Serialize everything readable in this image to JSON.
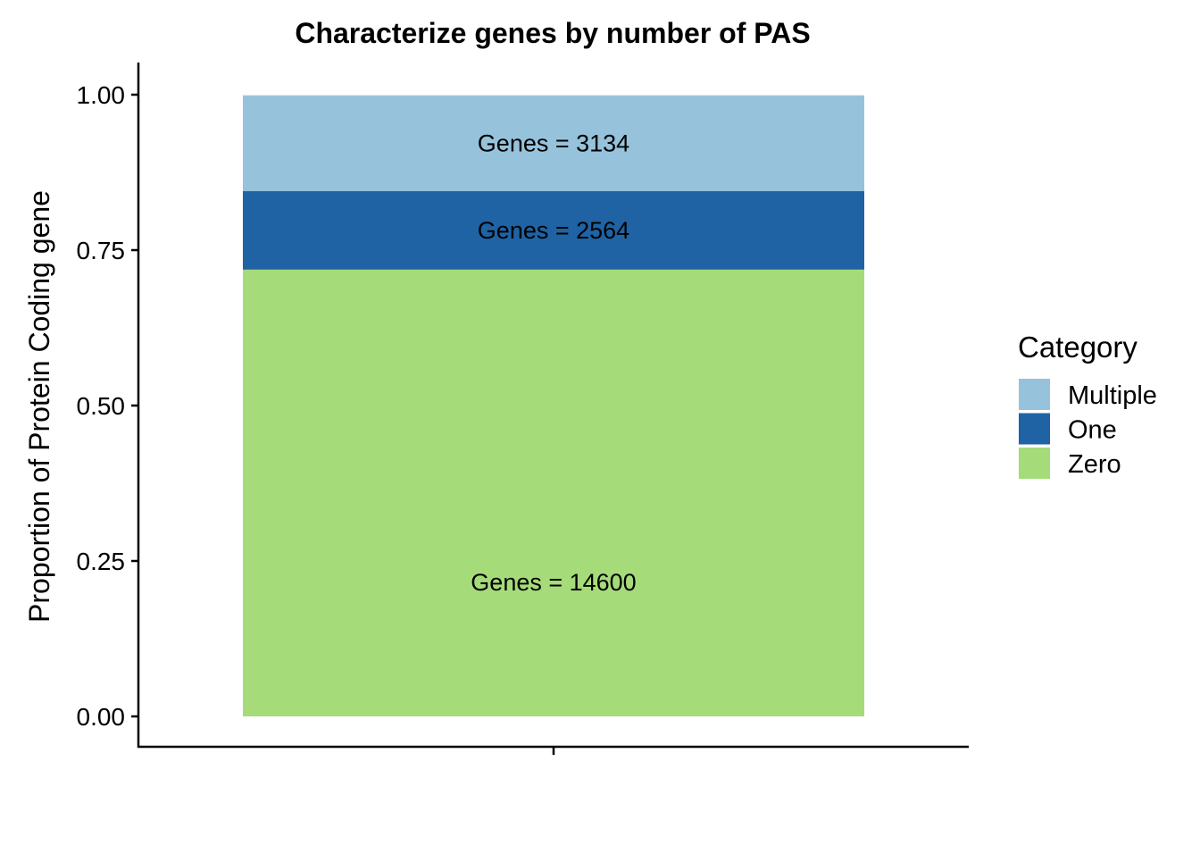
{
  "chart_data": {
    "type": "bar",
    "stacked": true,
    "normalized": true,
    "title": "Characterize genes by number of PAS",
    "xlabel": "",
    "ylabel": "Proportion of Protein Coding gene",
    "categories": [
      ""
    ],
    "ylim": [
      0,
      1
    ],
    "yticks": [
      "0.00",
      "0.25",
      "0.50",
      "0.75",
      "1.00"
    ],
    "grid": false,
    "legend": {
      "title": "Category",
      "placement": "right"
    },
    "series": [
      {
        "name": "Zero",
        "color": "#A6DB7A",
        "count": 14600,
        "values": [
          0.7186
        ],
        "label": "Genes = 14600"
      },
      {
        "name": "One",
        "color": "#1F63A5",
        "count": 2564,
        "values": [
          0.1262
        ],
        "label": "Genes = 2564"
      },
      {
        "name": "Multiple",
        "color": "#96C3DB",
        "count": 3134,
        "values": [
          0.1542
        ],
        "label": "Genes = 3134"
      }
    ],
    "legend_order": [
      "Multiple",
      "One",
      "Zero"
    ]
  }
}
